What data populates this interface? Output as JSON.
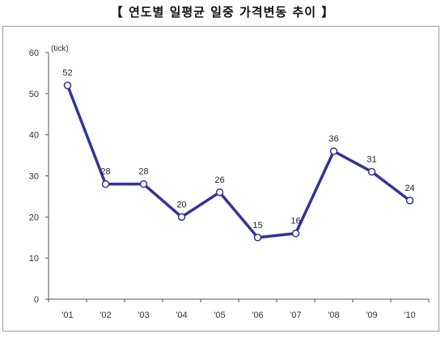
{
  "title": "【 연도별 일평균 일중 가격변동 추이 】",
  "chart_data": {
    "type": "line",
    "title": "【 연도별 일평균 일중 가격변동 추이 】",
    "unit_label": "(tick)",
    "categories": [
      "'01",
      "'02",
      "'03",
      "'04",
      "'05",
      "'06",
      "'07",
      "'08",
      "'09",
      "'10"
    ],
    "series": [
      {
        "values": [
          52,
          28,
          28,
          20,
          26,
          15,
          16,
          36,
          31,
          24
        ],
        "color": "#33339a"
      }
    ],
    "ylim": [
      0,
      60
    ],
    "yticks": [
      0,
      10,
      20,
      30,
      40,
      50,
      60
    ],
    "data_labels": true,
    "grid": false,
    "legend": "none",
    "marker": "circle-white"
  }
}
